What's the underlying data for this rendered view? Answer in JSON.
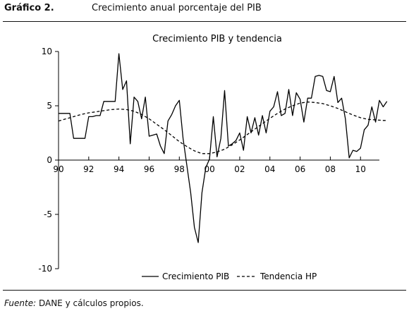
{
  "figure": {
    "number": "Gráfico 2.",
    "title": "Crecimiento anual porcentaje del PIB",
    "source_label": "Fuente:",
    "source_text": "DANE y cálculos propios."
  },
  "chart_data": {
    "type": "line",
    "title": "Crecimiento PIB y tendencia",
    "xlabel": "",
    "ylabel": "",
    "xlim": [
      1990,
      2011.25
    ],
    "ylim": [
      -10,
      10
    ],
    "x_ticks": [
      1990,
      1992,
      1994,
      1996,
      1998,
      2000,
      2002,
      2004,
      2006,
      2008,
      2010
    ],
    "x_tick_labels": [
      "90",
      "92",
      "94",
      "96",
      "98",
      "00",
      "02",
      "04",
      "06",
      "08",
      "10"
    ],
    "y_ticks": [
      10,
      5,
      0,
      -5,
      -10
    ],
    "y_tick_labels": [
      "10",
      "5",
      "0",
      "-5",
      "-10"
    ],
    "grid": false,
    "legend_position": "bottom",
    "series": [
      {
        "name": "Crecimiento PIB",
        "style": "solid",
        "color": "#000000",
        "points": [
          [
            1990.0,
            4.3
          ],
          [
            1990.25,
            4.3
          ],
          [
            1990.5,
            4.3
          ],
          [
            1990.75,
            4.3
          ],
          [
            1991.0,
            2.0
          ],
          [
            1991.25,
            2.0
          ],
          [
            1991.5,
            2.0
          ],
          [
            1991.75,
            2.0
          ],
          [
            1992.0,
            4.0
          ],
          [
            1992.25,
            4.0
          ],
          [
            1992.5,
            4.1
          ],
          [
            1992.75,
            4.1
          ],
          [
            1993.0,
            5.4
          ],
          [
            1993.25,
            5.4
          ],
          [
            1993.5,
            5.4
          ],
          [
            1993.75,
            5.4
          ],
          [
            1994.0,
            9.8
          ],
          [
            1994.25,
            6.5
          ],
          [
            1994.5,
            7.3
          ],
          [
            1994.75,
            1.5
          ],
          [
            1995.0,
            5.8
          ],
          [
            1995.25,
            5.4
          ],
          [
            1995.5,
            3.8
          ],
          [
            1995.75,
            5.8
          ],
          [
            1996.0,
            2.2
          ],
          [
            1996.25,
            2.3
          ],
          [
            1996.5,
            2.4
          ],
          [
            1996.75,
            1.3
          ],
          [
            1997.0,
            0.6
          ],
          [
            1997.25,
            3.6
          ],
          [
            1997.5,
            4.2
          ],
          [
            1997.75,
            5.0
          ],
          [
            1998.0,
            5.5
          ],
          [
            1998.25,
            2.0
          ],
          [
            1998.5,
            -0.5
          ],
          [
            1998.75,
            -3.0
          ],
          [
            1999.0,
            -6.2
          ],
          [
            1999.25,
            -7.6
          ],
          [
            1999.5,
            -3.0
          ],
          [
            1999.75,
            -0.7
          ],
          [
            2000.0,
            0.1
          ],
          [
            2000.25,
            4.0
          ],
          [
            2000.5,
            0.3
          ],
          [
            2000.75,
            2.0
          ],
          [
            2001.0,
            6.4
          ],
          [
            2001.25,
            1.3
          ],
          [
            2001.5,
            1.5
          ],
          [
            2001.75,
            1.8
          ],
          [
            2002.0,
            2.5
          ],
          [
            2002.25,
            0.9
          ],
          [
            2002.5,
            4.0
          ],
          [
            2002.75,
            2.5
          ],
          [
            2003.0,
            3.9
          ],
          [
            2003.25,
            2.3
          ],
          [
            2003.5,
            4.1
          ],
          [
            2003.75,
            2.5
          ],
          [
            2004.0,
            4.5
          ],
          [
            2004.25,
            4.9
          ],
          [
            2004.5,
            6.3
          ],
          [
            2004.75,
            4.1
          ],
          [
            2005.0,
            4.3
          ],
          [
            2005.25,
            6.5
          ],
          [
            2005.5,
            4.1
          ],
          [
            2005.75,
            6.2
          ],
          [
            2006.0,
            5.6
          ],
          [
            2006.25,
            3.5
          ],
          [
            2006.5,
            5.7
          ],
          [
            2006.75,
            5.7
          ],
          [
            2007.0,
            7.7
          ],
          [
            2007.25,
            7.8
          ],
          [
            2007.5,
            7.7
          ],
          [
            2007.75,
            6.4
          ],
          [
            2008.0,
            6.3
          ],
          [
            2008.25,
            7.7
          ],
          [
            2008.5,
            5.3
          ],
          [
            2008.75,
            5.7
          ],
          [
            2009.0,
            3.8
          ],
          [
            2009.25,
            0.2
          ],
          [
            2009.5,
            0.9
          ],
          [
            2009.75,
            0.8
          ],
          [
            2010.0,
            1.1
          ],
          [
            2010.25,
            2.8
          ],
          [
            2010.5,
            3.2
          ],
          [
            2010.75,
            4.9
          ],
          [
            2011.0,
            3.5
          ],
          [
            2011.25,
            5.5
          ],
          [
            2011.5,
            4.9
          ],
          [
            2011.75,
            5.4
          ]
        ]
      },
      {
        "name": "Tendencia HP",
        "style": "dashed",
        "color": "#000000",
        "points": [
          [
            1990.0,
            3.6
          ],
          [
            1990.5,
            3.8
          ],
          [
            1991.0,
            4.0
          ],
          [
            1991.5,
            4.2
          ],
          [
            1992.0,
            4.35
          ],
          [
            1992.5,
            4.45
          ],
          [
            1993.0,
            4.55
          ],
          [
            1993.5,
            4.65
          ],
          [
            1994.0,
            4.7
          ],
          [
            1994.5,
            4.65
          ],
          [
            1995.0,
            4.5
          ],
          [
            1995.5,
            4.2
          ],
          [
            1996.0,
            3.8
          ],
          [
            1996.5,
            3.3
          ],
          [
            1997.0,
            2.8
          ],
          [
            1997.5,
            2.25
          ],
          [
            1998.0,
            1.7
          ],
          [
            1998.5,
            1.25
          ],
          [
            1999.0,
            0.85
          ],
          [
            1999.5,
            0.6
          ],
          [
            2000.0,
            0.6
          ],
          [
            2000.5,
            0.75
          ],
          [
            2001.0,
            1.0
          ],
          [
            2001.5,
            1.4
          ],
          [
            2002.0,
            1.85
          ],
          [
            2002.5,
            2.35
          ],
          [
            2003.0,
            2.85
          ],
          [
            2003.5,
            3.35
          ],
          [
            2004.0,
            3.85
          ],
          [
            2004.5,
            4.3
          ],
          [
            2005.0,
            4.7
          ],
          [
            2005.5,
            5.0
          ],
          [
            2006.0,
            5.25
          ],
          [
            2006.5,
            5.35
          ],
          [
            2007.0,
            5.3
          ],
          [
            2007.5,
            5.2
          ],
          [
            2008.0,
            5.0
          ],
          [
            2008.5,
            4.75
          ],
          [
            2009.0,
            4.45
          ],
          [
            2009.5,
            4.15
          ],
          [
            2010.0,
            3.9
          ],
          [
            2010.5,
            3.75
          ],
          [
            2011.0,
            3.7
          ],
          [
            2011.5,
            3.65
          ],
          [
            2011.75,
            3.65
          ]
        ]
      }
    ]
  }
}
